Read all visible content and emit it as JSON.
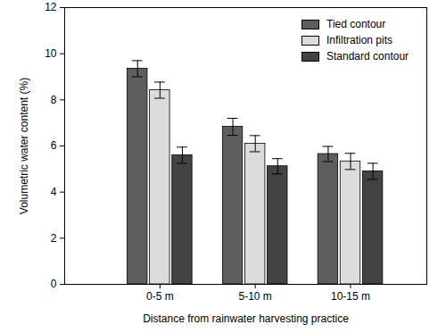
{
  "chart_data": {
    "type": "bar",
    "categories": [
      "0-5 m",
      "5-10 m",
      "10-15 m"
    ],
    "x_label": "Distance from rainwater harvesting practice",
    "y_label": "Volumetric water content (%)",
    "series": [
      {
        "name": "Tied contour",
        "color": "#5e5e5e",
        "values": [
          9.35,
          6.83,
          5.65
        ],
        "errors": [
          0.35,
          0.37,
          0.33
        ]
      },
      {
        "name": "Infiltration pits",
        "color": "#dcdcdc",
        "values": [
          8.42,
          6.1,
          5.33
        ],
        "errors": [
          0.35,
          0.35,
          0.35
        ]
      },
      {
        "name": "Standard contour",
        "color": "#434343",
        "values": [
          5.6,
          5.12,
          4.9
        ],
        "errors": [
          0.35,
          0.33,
          0.35
        ]
      }
    ],
    "ylim": [
      0,
      12
    ],
    "yticks": [
      0,
      2,
      4,
      6,
      8,
      10,
      12
    ],
    "grid": false,
    "legend": "top-right"
  }
}
